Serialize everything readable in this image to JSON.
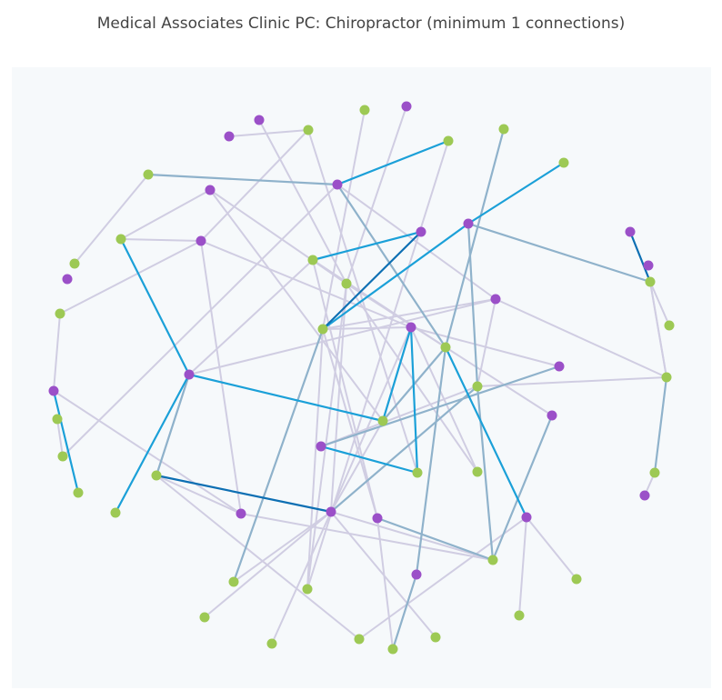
{
  "title": "Medical Associates Clinic PC: Chiropractor (minimum 1 connections)",
  "colors": {
    "background": "#f6f9fb",
    "node_type_a": "#9b50c8",
    "node_type_b": "#9dc954",
    "edge_weak": "#d0cde2",
    "edge_medium": "#8fb2cb",
    "edge_strong": "#1ba0d8",
    "edge_strongest": "#0d6fb3"
  },
  "graph": {
    "node_count": 80,
    "edge_tiers": [
      "weak",
      "medium",
      "strong",
      "strongest"
    ]
  }
}
